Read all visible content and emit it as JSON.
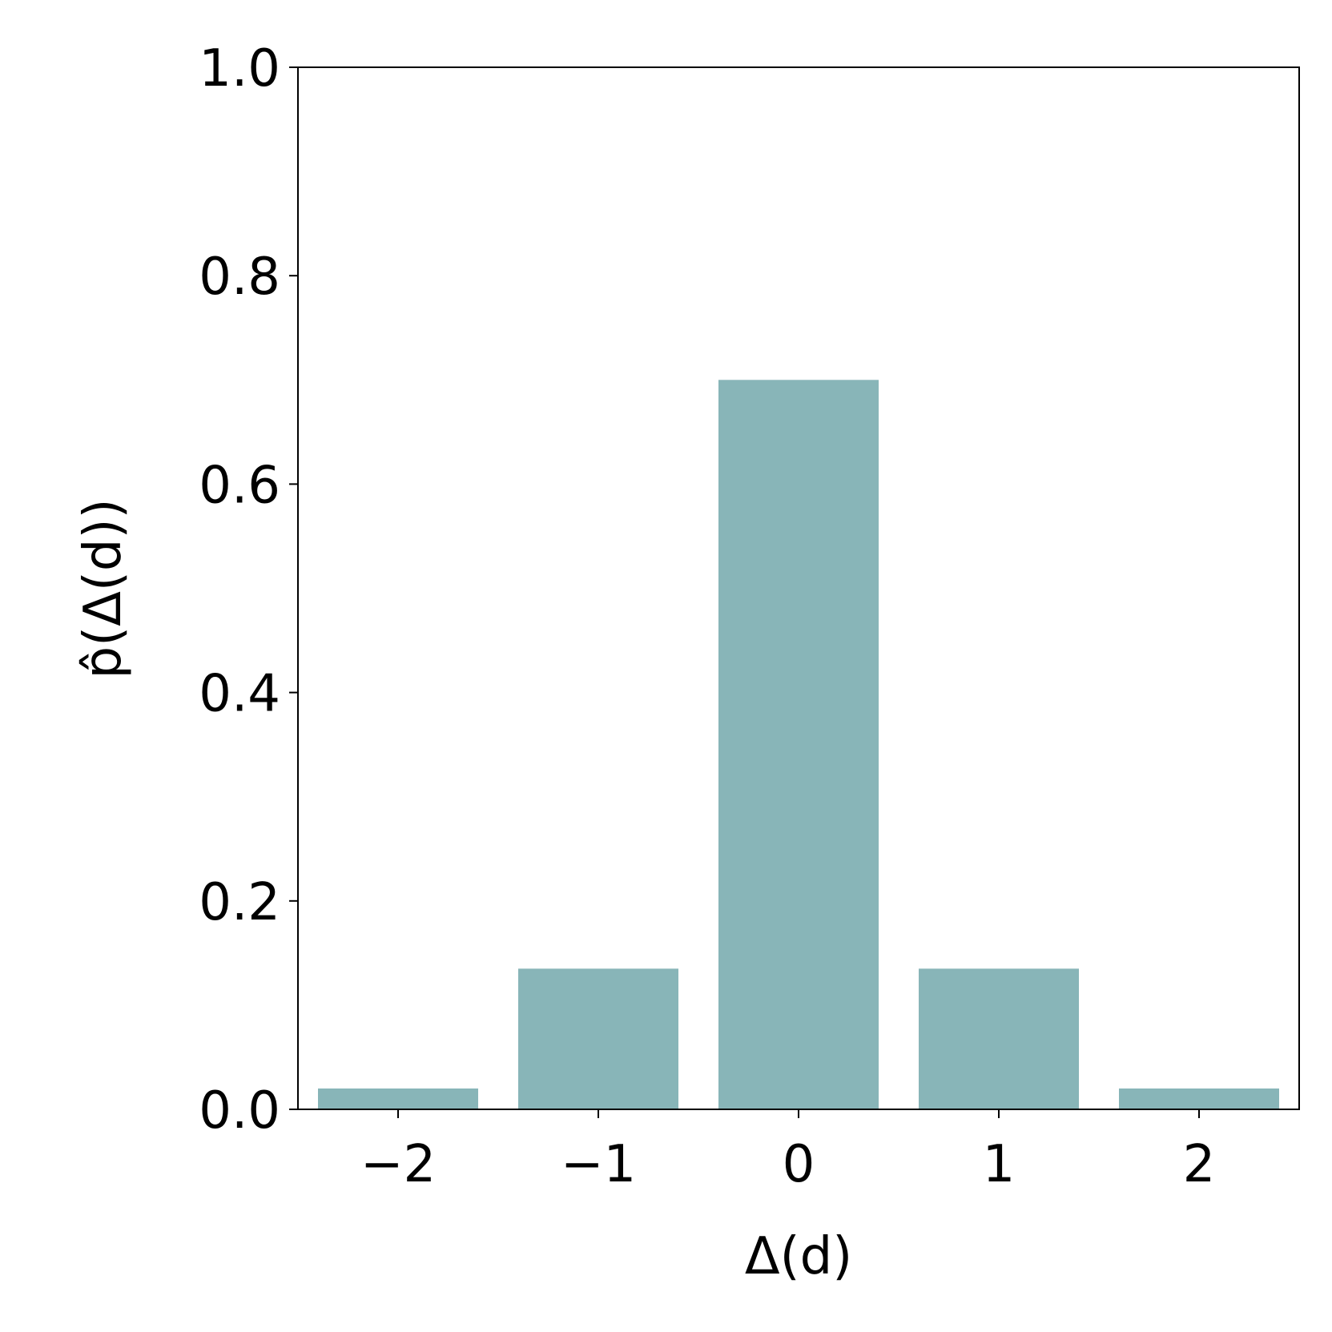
{
  "chart_data": {
    "type": "bar",
    "x_label": "Δ(d)",
    "y_label": "p̂(Δ(d))",
    "x": [
      -2,
      -1,
      0,
      1,
      2
    ],
    "values": [
      0.02,
      0.135,
      0.7,
      0.135,
      0.02
    ],
    "color": "#88b5b8",
    "xlim": [
      -2.5,
      2.5
    ],
    "xticks": [
      {
        "value": -2,
        "label": "−2"
      },
      {
        "value": -1,
        "label": "−1"
      },
      0,
      1,
      2
    ],
    "ylim": [
      0,
      1
    ],
    "yticks": [
      {
        "value": 0,
        "label": "0.0"
      },
      0.2,
      0.4,
      0.6,
      0.8,
      {
        "value": 1,
        "label": "1.0"
      }
    ],
    "grid": false
  }
}
